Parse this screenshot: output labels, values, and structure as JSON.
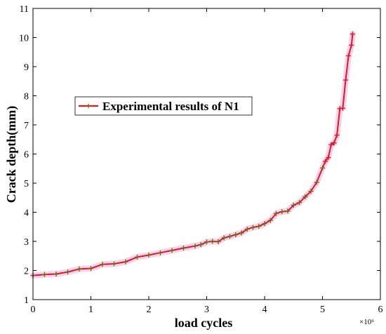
{
  "chart_data": {
    "type": "line",
    "title": "",
    "xlabel": "load cycles",
    "ylabel": "Crack depth(mm)",
    "x_exponent_label": "×10⁶",
    "xlim": [
      0,
      6
    ],
    "ylim": [
      1,
      11
    ],
    "x_ticks": [
      0,
      1,
      2,
      3,
      4,
      5,
      6
    ],
    "y_ticks": [
      1,
      2,
      3,
      4,
      5,
      6,
      7,
      8,
      9,
      10,
      11
    ],
    "grid": false,
    "legend_position": "center-left",
    "series": [
      {
        "name": "Experimental results of N1",
        "color": "#e8161b",
        "marker": "plus",
        "marker_color": "#6b6b14",
        "x": [
          0,
          0.2,
          0.4,
          0.6,
          0.8,
          1.0,
          1.2,
          1.4,
          1.6,
          1.8,
          2.0,
          2.2,
          2.4,
          2.6,
          2.8,
          2.9,
          3.0,
          3.1,
          3.2,
          3.3,
          3.4,
          3.5,
          3.6,
          3.7,
          3.8,
          3.9,
          4.0,
          4.1,
          4.2,
          4.3,
          4.4,
          4.5,
          4.6,
          4.7,
          4.8,
          4.9,
          5.0,
          5.05,
          5.1,
          5.15,
          5.2,
          5.25,
          5.3,
          5.35,
          5.4,
          5.45,
          5.5,
          5.52
        ],
        "y": [
          1.83,
          1.86,
          1.88,
          1.95,
          2.05,
          2.07,
          2.21,
          2.23,
          2.3,
          2.46,
          2.53,
          2.61,
          2.69,
          2.77,
          2.84,
          2.89,
          2.98,
          3.0,
          2.99,
          3.12,
          3.17,
          3.23,
          3.29,
          3.42,
          3.48,
          3.52,
          3.61,
          3.72,
          3.96,
          4.02,
          4.04,
          4.24,
          4.33,
          4.53,
          4.72,
          5.03,
          5.52,
          5.75,
          5.88,
          6.32,
          6.38,
          6.65,
          7.56,
          7.57,
          8.54,
          9.37,
          9.74,
          10.12
        ]
      }
    ]
  }
}
